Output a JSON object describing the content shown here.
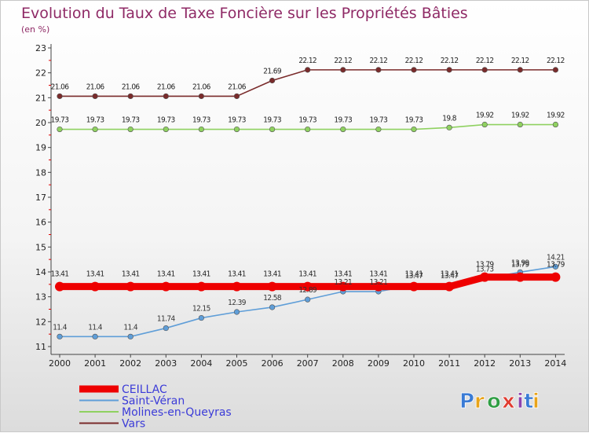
{
  "chart_data": {
    "type": "line",
    "title": "Evolution du Taux de Taxe Foncière sur les Propriétés Bâties",
    "subtitle": "(en %)",
    "xlabel": "",
    "ylabel": "(en %)",
    "categories": [
      "2000",
      "2001",
      "2002",
      "2003",
      "2004",
      "2005",
      "2006",
      "2007",
      "2008",
      "2009",
      "2010",
      "2011",
      "2012",
      "2013",
      "2014"
    ],
    "yticks": [
      "11",
      "12",
      "13",
      "14",
      "15",
      "16",
      "17",
      "18",
      "19",
      "20",
      "21",
      "22",
      "23"
    ],
    "ylim": [
      11,
      23
    ],
    "grid": false,
    "legend_position": "bottom-left",
    "series": [
      {
        "name": "CEILLAC",
        "color": "#ee0000",
        "values": [
          13.41,
          13.41,
          13.41,
          13.41,
          13.41,
          13.41,
          13.41,
          13.41,
          13.41,
          13.41,
          13.41,
          13.41,
          13.79,
          13.79,
          13.79
        ],
        "labels": [
          "13.41",
          "13.41",
          "13.41",
          "13.41",
          "13.41",
          "13.41",
          "13.41",
          "13.41",
          "13.41",
          "13.41",
          "13.41",
          "13.41",
          "13.79",
          "13.79",
          "13.79"
        ]
      },
      {
        "name": "Saint-Véran",
        "color": "#5f9ed8",
        "values": [
          11.4,
          11.4,
          11.4,
          11.74,
          12.15,
          12.39,
          12.58,
          12.89,
          13.21,
          13.21,
          13.47,
          13.47,
          13.73,
          13.99,
          14.21
        ],
        "labels": [
          "11.4",
          "11.4",
          "11.4",
          "11.74",
          "12.15",
          "12.39",
          "12.58",
          "12.89",
          "13.21",
          "13.21",
          "13.47",
          "13.47",
          "13.73",
          "13.99",
          "14.21"
        ]
      },
      {
        "name": "Molines-en-Queyras",
        "color": "#8fd160",
        "values": [
          19.73,
          19.73,
          19.73,
          19.73,
          19.73,
          19.73,
          19.73,
          19.73,
          19.73,
          19.73,
          19.73,
          19.8,
          19.92,
          19.92,
          19.92
        ],
        "labels": [
          "19.73",
          "19.73",
          "19.73",
          "19.73",
          "19.73",
          "19.73",
          "19.73",
          "19.73",
          "19.73",
          "19.73",
          "19.73",
          "19.8",
          "19.92",
          "19.92",
          "19.92"
        ]
      },
      {
        "name": "Vars",
        "color": "#7a2b2b",
        "values": [
          21.06,
          21.06,
          21.06,
          21.06,
          21.06,
          21.06,
          21.69,
          22.12,
          22.12,
          22.12,
          22.12,
          22.12,
          22.12,
          22.12,
          22.12
        ],
        "labels": [
          "21.06",
          "21.06",
          "21.06",
          "21.06",
          "21.06",
          "21.06",
          "21.69",
          "22.12",
          "22.12",
          "22.12",
          "22.12",
          "22.12",
          "22.12",
          "22.12",
          "22.12"
        ]
      }
    ]
  },
  "logo": {
    "text": "Proxiti",
    "letter_colors": [
      "#3a7bd5",
      "#e8a319",
      "#2f9e44",
      "#e03c31",
      "#8e44ad",
      "#3a7bd5",
      "#e8a319"
    ]
  }
}
